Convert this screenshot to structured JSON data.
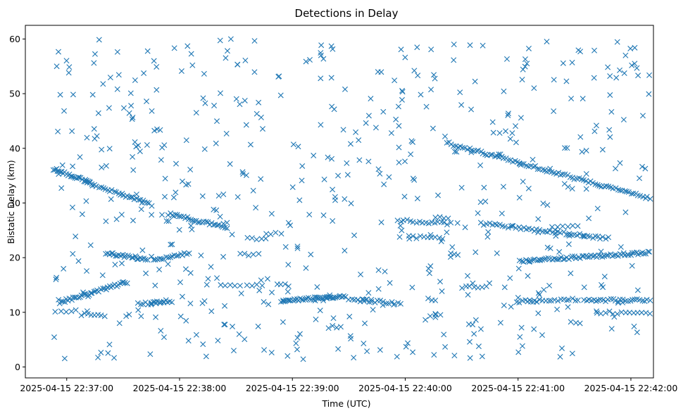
{
  "chart_data": {
    "type": "scatter",
    "title": "Detections in Delay",
    "xlabel": "Time (UTC)",
    "ylabel": "Bistatic Delay (km)",
    "marker": "x",
    "color": "#1f77b4",
    "x_unit": "seconds since 2025-04-15 22:37:00 UTC",
    "xlim": [
      -22,
      312
    ],
    "ylim": [
      -2,
      62.5
    ],
    "x_ticks": [
      {
        "value": 0,
        "label": "2025-04-15 22:37:00"
      },
      {
        "value": 60,
        "label": "2025-04-15 22:38:00"
      },
      {
        "value": 120,
        "label": "2025-04-15 22:39:00"
      },
      {
        "value": 180,
        "label": "2025-04-15 22:40:00"
      },
      {
        "value": 240,
        "label": "2025-04-15 22:41:00"
      },
      {
        "value": 300,
        "label": "2025-04-15 22:42:00"
      }
    ],
    "y_ticks": [
      {
        "value": 0,
        "label": "0"
      },
      {
        "value": 10,
        "label": "10"
      },
      {
        "value": 20,
        "label": "20"
      },
      {
        "value": 30,
        "label": "30"
      },
      {
        "value": 40,
        "label": "40"
      },
      {
        "value": 50,
        "label": "50"
      },
      {
        "value": 60,
        "label": "60"
      }
    ],
    "track_segments": [
      {
        "x0": -7,
        "y0": 36.2,
        "x1": 12,
        "y1": 33.8,
        "n": 26
      },
      {
        "x0": 10,
        "y0": 33.8,
        "x1": 44,
        "y1": 29.8,
        "n": 30
      },
      {
        "x0": -4,
        "y0": 11.8,
        "x1": 32,
        "y1": 15.5,
        "n": 40
      },
      {
        "x0": 21,
        "y0": 20.8,
        "x1": 43,
        "y1": 19.7,
        "n": 24
      },
      {
        "x0": 54,
        "y0": 28.0,
        "x1": 85,
        "y1": 25.5,
        "n": 32
      },
      {
        "x0": 46,
        "y0": 19.6,
        "x1": 65,
        "y1": 20.8,
        "n": 18
      },
      {
        "x0": 38,
        "y0": 11.5,
        "x1": 56,
        "y1": 12.0,
        "n": 14
      },
      {
        "x0": 115,
        "y0": 12.1,
        "x1": 148,
        "y1": 13.0,
        "n": 40
      },
      {
        "x0": 150,
        "y0": 12.3,
        "x1": 176,
        "y1": 11.7,
        "n": 18
      },
      {
        "x0": 202,
        "y0": 41.0,
        "x1": 310,
        "y1": 30.8,
        "n": 90
      },
      {
        "x0": 241,
        "y0": 19.4,
        "x1": 310,
        "y1": 20.9,
        "n": 70
      },
      {
        "x0": 222,
        "y0": 26.2,
        "x1": 288,
        "y1": 23.5,
        "n": 48
      },
      {
        "x0": 239,
        "y0": 12.0,
        "x1": 272,
        "y1": 12.3,
        "n": 22
      },
      {
        "x0": 275,
        "y0": 12.2,
        "x1": 310,
        "y1": 12.2,
        "n": 28
      },
      {
        "x0": 282,
        "y0": 10.0,
        "x1": 310,
        "y1": 9.8,
        "n": 14
      },
      {
        "x0": 182,
        "y0": 23.8,
        "x1": 200,
        "y1": 23.5,
        "n": 10
      },
      {
        "x0": 176,
        "y0": 26.8,
        "x1": 204,
        "y1": 26.2,
        "n": 18
      },
      {
        "x0": -6,
        "y0": 10.3,
        "x1": 5,
        "y1": 10.3,
        "n": 5
      },
      {
        "x0": 8,
        "y0": 9.6,
        "x1": 20,
        "y1": 9.5,
        "n": 8
      },
      {
        "x0": 82,
        "y0": 15.0,
        "x1": 92,
        "y1": 15.0,
        "n": 5
      },
      {
        "x0": 92,
        "y0": 20.6,
        "x1": 102,
        "y1": 20.6,
        "n": 5
      },
      {
        "x0": 96,
        "y0": 23.5,
        "x1": 106,
        "y1": 23.5,
        "n": 5
      },
      {
        "x0": 106,
        "y0": 24.5,
        "x1": 114,
        "y1": 24.5,
        "n": 4
      },
      {
        "x0": 96,
        "y0": 15.0,
        "x1": 104,
        "y1": 15.0,
        "n": 4
      },
      {
        "x0": 112,
        "y0": 15.0,
        "x1": 118,
        "y1": 15.0,
        "n": 4
      },
      {
        "x0": 210,
        "y0": 14.6,
        "x1": 223,
        "y1": 14.6,
        "n": 7
      },
      {
        "x0": 246,
        "y0": 12.0,
        "x1": 250,
        "y1": 12.0,
        "n": 3
      },
      {
        "x0": 155,
        "y0": 12.5,
        "x1": 162,
        "y1": 12.5,
        "n": 4
      },
      {
        "x0": 196,
        "y0": 27.3,
        "x1": 203,
        "y1": 27.3,
        "n": 4
      },
      {
        "x0": 45,
        "y0": 11.8,
        "x1": 53,
        "y1": 12.0,
        "n": 6
      },
      {
        "x0": 258,
        "y0": 25.6,
        "x1": 272,
        "y1": 25.8,
        "n": 6
      },
      {
        "x0": 193,
        "y0": 9.5,
        "x1": 199,
        "y1": 9.5,
        "n": 3
      },
      {
        "x0": 192,
        "y0": 12.3,
        "x1": 196,
        "y1": 12.3,
        "n": 3
      },
      {
        "x0": 204,
        "y0": 20.7,
        "x1": 208,
        "y1": 20.7,
        "n": 3
      },
      {
        "x0": 139,
        "y0": 7.3,
        "x1": 146,
        "y1": 7.3,
        "n": 4
      },
      {
        "x0": 132,
        "y0": 12.4,
        "x1": 140,
        "y1": 12.6,
        "n": 5
      },
      {
        "x0": 268,
        "y0": 8.2,
        "x1": 273,
        "y1": 8.2,
        "n": 3
      },
      {
        "x0": 302,
        "y0": 55.5,
        "x1": 304,
        "y1": 53.5,
        "n": 3
      }
    ],
    "scatter_noise": {
      "description": "uniformly scattered isolated detections",
      "count": 560,
      "x_range": [
        -7,
        310
      ],
      "y_range": [
        1,
        60
      ],
      "random_seed": 20250415
    }
  }
}
